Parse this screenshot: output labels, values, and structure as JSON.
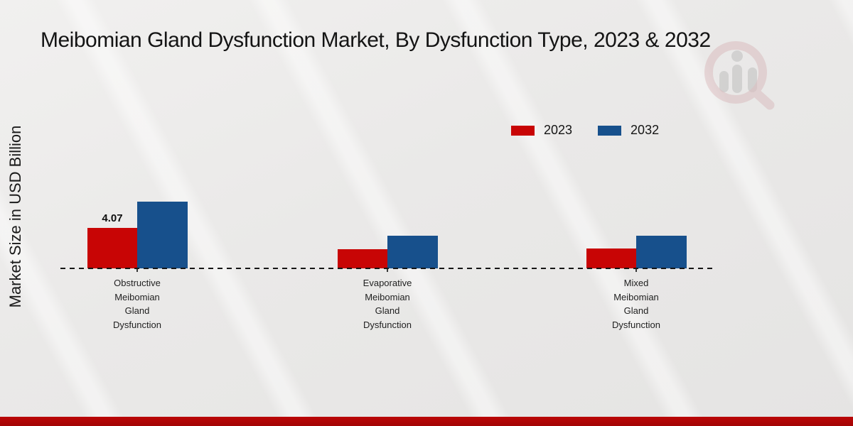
{
  "title": "Meibomian Gland Dysfunction Market, By Dysfunction Type, 2023 & 2032",
  "y_axis_label": "Market Size in USD Billion",
  "legend": {
    "position": "top-right",
    "items": [
      {
        "label": "2023",
        "color": "#c80505"
      },
      {
        "label": "2032",
        "color": "#17508c"
      }
    ]
  },
  "watermark": {
    "icon": "magnifier-analytics-logo-icon"
  },
  "colors": {
    "bar_2023": "#c80505",
    "bar_2032": "#17508c",
    "footer_strip": "#bb0606",
    "background": "#eae9e8",
    "baseline": "#161616"
  },
  "chart_data": {
    "type": "bar",
    "title": "Meibomian Gland Dysfunction Market, By Dysfunction Type, 2023 & 2032",
    "xlabel": "",
    "ylabel": "Market Size in USD Billion",
    "ylim": [
      0,
      8
    ],
    "grid": false,
    "legend_position": "top-right",
    "baseline_style": "dashed",
    "categories": [
      "Obstructive\nMeibomian\nGland\nDysfunction",
      "Evaporative\nMeibomian\nGland\nDysfunction",
      "Mixed\nMeibomian\nGland\nDysfunction"
    ],
    "series": [
      {
        "name": "2023",
        "color": "#c80505",
        "values": [
          4.07,
          1.92,
          2.0
        ]
      },
      {
        "name": "2032",
        "color": "#17508c",
        "values": [
          6.71,
          3.24,
          3.29
        ]
      }
    ],
    "value_labels": [
      {
        "series_index": 0,
        "category_index": 0,
        "text": "4.07"
      }
    ]
  }
}
